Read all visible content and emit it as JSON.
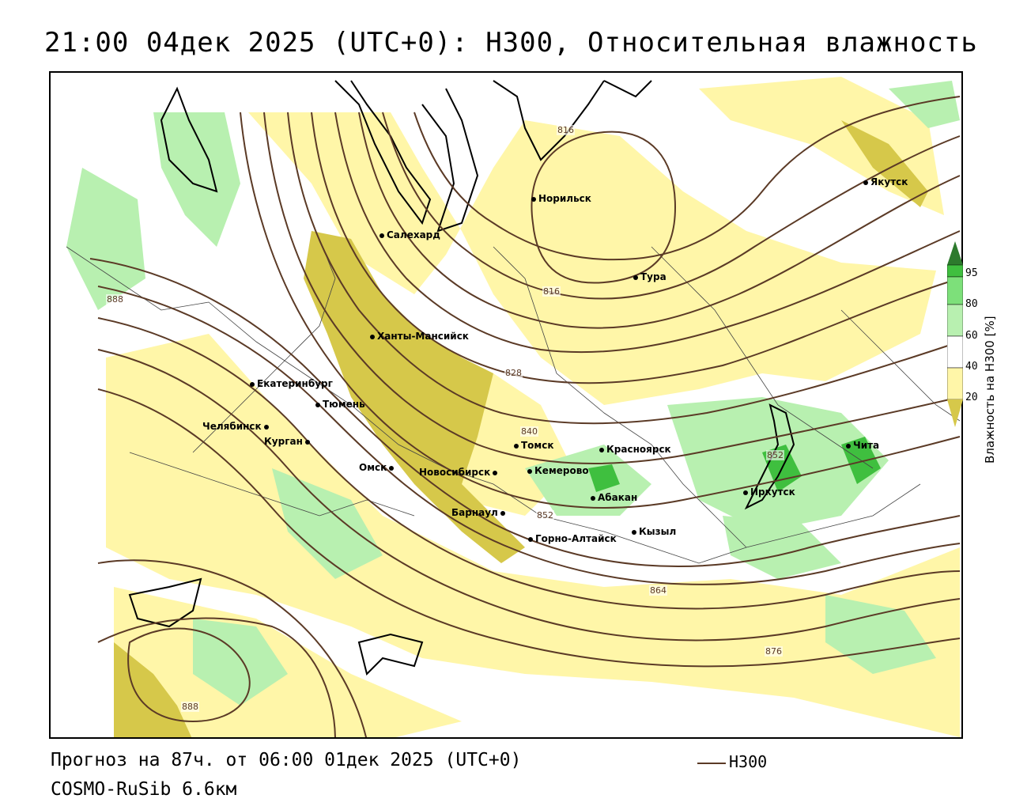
{
  "title": "21:00 04дек 2025 (UTC+0): H300, Относительная влажность",
  "footer": {
    "forecast": "Прогноз на 87ч. от 06:00 01дек 2025 (UTC+0)",
    "model": "COSMO-RuSib 6.6км"
  },
  "series_legend": {
    "label": "H300",
    "color": "#5b3a26"
  },
  "humidity_legend": {
    "title": "Влажность на H300 [%]",
    "ticks": [
      "95",
      "80",
      "60",
      "40",
      "20"
    ]
  },
  "colors": {
    "very_high": "#2d7a2d",
    "high": "#3fbf3f",
    "mid": "#b8f0b0",
    "low_dry": "#fff6a8",
    "very_dry": "#d6c84a",
    "contour": "#5b3a26"
  },
  "cities": [
    {
      "name": "Норильск"
    },
    {
      "name": "Якутск"
    },
    {
      "name": "Салехард"
    },
    {
      "name": "Тура"
    },
    {
      "name": "Ханты-Мансийск"
    },
    {
      "name": "Екатеринбург"
    },
    {
      "name": "Тюмень"
    },
    {
      "name": "Челябинск"
    },
    {
      "name": "Курган"
    },
    {
      "name": "Омск"
    },
    {
      "name": "Томск"
    },
    {
      "name": "Красноярск"
    },
    {
      "name": "Новосибирск"
    },
    {
      "name": "Кемерово"
    },
    {
      "name": "Абакан"
    },
    {
      "name": "Иркутск"
    },
    {
      "name": "Чита"
    },
    {
      "name": "Барнаул"
    },
    {
      "name": "Горно-Алтайск"
    },
    {
      "name": "Кызыл"
    }
  ],
  "contour_labels": [
    "816",
    "816",
    "828",
    "840",
    "852",
    "852",
    "864",
    "876",
    "888",
    "888"
  ]
}
